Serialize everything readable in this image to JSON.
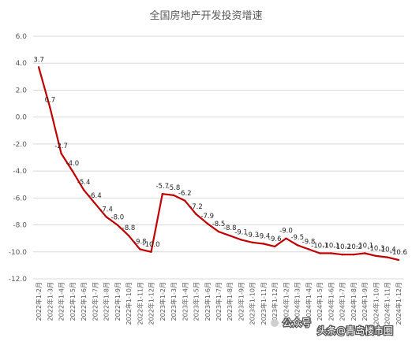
{
  "chart_data": {
    "type": "line",
    "title": "全国房地产开发投资增速",
    "xlabel": "",
    "ylabel": "",
    "ylim": [
      -12,
      6
    ],
    "yticks": [
      "6.0",
      "4.0",
      "2.0",
      "0.0",
      "-2.0",
      "-4.0",
      "-6.0",
      "-8.0",
      "-10.0",
      "-12.0"
    ],
    "grid": "horizontal",
    "legend": "none",
    "color": "#C00000",
    "categories": [
      "2022年1-2月",
      "2022年1-3月",
      "2022年1-4月",
      "2022年1-5月",
      "2022年1-6月",
      "2022年1-7月",
      "2022年1-8月",
      "2022年1-9月",
      "2022年1-10月",
      "2022年1-11月",
      "2022年1-12月",
      "2023年1-2月",
      "2023年1-3月",
      "2023年1-4月",
      "2023年1-5月",
      "2023年1-6月",
      "2023年1-7月",
      "2023年1-8月",
      "2023年1-9月",
      "2023年1-10月",
      "2023年1-11月",
      "2023年1-12月",
      "2024年1-2月",
      "2024年1-3月",
      "2024年1-4月",
      "2024年1-5月",
      "2024年1-6月",
      "2024年1-7月",
      "2024年1-8月",
      "2024年1-9月",
      "2024年1-10月",
      "2024年1-11月",
      "2024年1-12月"
    ],
    "values": [
      3.7,
      0.7,
      -2.7,
      -4.0,
      -5.4,
      -6.4,
      -7.4,
      -8.0,
      -8.8,
      -9.8,
      -10.0,
      -5.7,
      -5.8,
      -6.2,
      -7.2,
      -7.9,
      -8.5,
      -8.8,
      -9.1,
      -9.3,
      -9.4,
      -9.6,
      -9.0,
      -9.5,
      -9.8,
      -10.1,
      -10.1,
      -10.2,
      -10.2,
      -10.1,
      -10.3,
      -10.4,
      -10.6
    ],
    "data_labels": [
      "3.7",
      "0.7",
      "-2.7",
      "-4.0",
      "-5.4",
      "-6.4",
      "-7.4",
      "-8.0",
      "-8.8",
      "-9.8",
      "-10.0",
      "-5.7",
      "-5.8",
      "-6.2",
      "-7.2",
      "-7.9",
      "-8.5",
      "-8.8",
      "-9.1",
      "-9.3",
      "-9.4",
      "-9.6",
      "-9.0",
      "-9.5",
      "-9.8",
      "-10.1",
      "-10.1",
      "-10.2",
      "-10.2",
      "-10.1",
      "-10.3",
      "-10.4",
      "-10.6"
    ]
  },
  "watermark": {
    "line1": "头条@青岛楼市圈",
    "line2": "公众号"
  }
}
